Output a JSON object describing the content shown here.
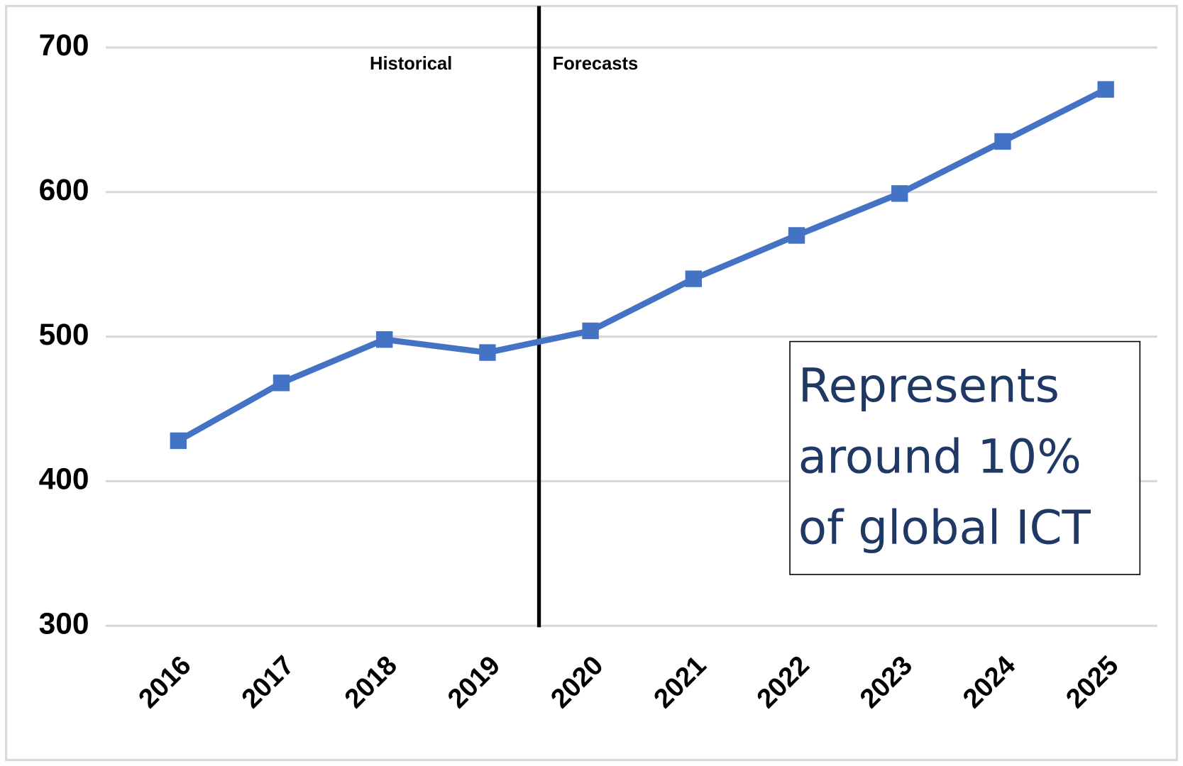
{
  "chart_data": {
    "type": "line",
    "categories": [
      "2016",
      "2017",
      "2018",
      "2019",
      "2020",
      "2021",
      "2022",
      "2023",
      "2024",
      "2025"
    ],
    "values": [
      428,
      468,
      498,
      489,
      504,
      540,
      570,
      599,
      635,
      671
    ],
    "color": "#4472c4",
    "ylim": [
      300,
      700
    ],
    "yticks": [
      300,
      400,
      500,
      600,
      700
    ],
    "grid": true,
    "annotations": [
      "Historical",
      "Forecasts"
    ],
    "note": [
      "Represents",
      "around 10%",
      "of global ICT"
    ]
  }
}
